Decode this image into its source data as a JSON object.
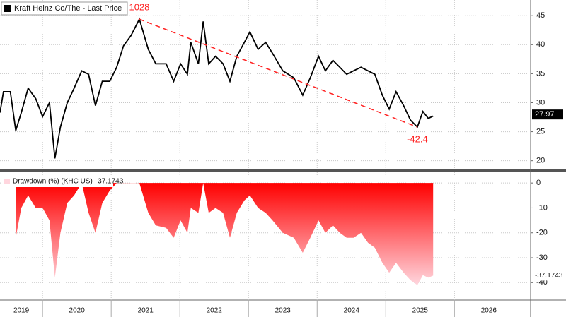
{
  "chart_data": [
    {
      "type": "line",
      "legend": "Kraft Heinz Co/The - Last Price",
      "x": [
        2019.38,
        2019.43,
        2019.53,
        2019.61,
        2019.69,
        2019.79,
        2019.9,
        2020.0,
        2020.1,
        2020.18,
        2020.26,
        2020.36,
        2020.46,
        2020.57,
        2020.67,
        2020.77,
        2020.87,
        2020.98,
        2021.08,
        2021.18,
        2021.29,
        2021.41,
        2021.54,
        2021.65,
        2021.8,
        2021.91,
        2022.01,
        2022.11,
        2022.16,
        2022.27,
        2022.34,
        2022.42,
        2022.52,
        2022.63,
        2022.73,
        2022.83,
        2022.94,
        2023.02,
        2023.14,
        2023.25,
        2023.35,
        2023.5,
        2023.66,
        2023.79,
        2023.9,
        2024.02,
        2024.12,
        2024.23,
        2024.33,
        2024.43,
        2024.53,
        2024.64,
        2024.74,
        2024.84,
        2024.95,
        2025.05,
        2025.15,
        2025.26,
        2025.36,
        2025.46,
        2025.54,
        2025.62,
        2025.69
      ],
      "series": [
        {
          "name": "Kraft Heinz Co/The - Last Price",
          "color": "#000000",
          "values": [
            28.3,
            31.9,
            31.9,
            25.2,
            28.3,
            32.5,
            30.7,
            27.6,
            30.0,
            20.4,
            25.8,
            30.0,
            32.5,
            35.5,
            34.9,
            29.5,
            33.7,
            33.7,
            36.1,
            39.8,
            41.6,
            44.4,
            39.2,
            36.7,
            36.7,
            33.7,
            36.7,
            34.9,
            40.4,
            36.7,
            44.0,
            36.7,
            38.0,
            36.7,
            33.7,
            38.0,
            40.4,
            42.2,
            39.2,
            40.4,
            38.5,
            35.5,
            34.3,
            31.3,
            34.3,
            38.0,
            35.5,
            37.3,
            36.1,
            34.9,
            35.5,
            36.1,
            35.5,
            34.9,
            31.3,
            28.9,
            31.9,
            29.5,
            27.0,
            25.8,
            28.5,
            27.3,
            27.7
          ],
          "last_value": 27.97
        }
      ],
      "annotations": [
        {
          "text": "1028",
          "color": "#ff2020"
        },
        {
          "text": "-42.4",
          "color": "#ff2020"
        }
      ],
      "xlim": [
        2019.38,
        2027.11
      ],
      "ylim": [
        18.5,
        47.7
      ],
      "yticks": [
        20,
        25,
        30,
        35,
        40,
        45
      ],
      "grid": true
    },
    {
      "type": "area",
      "x": [
        2019.38,
        2019.43,
        2019.53,
        2019.61,
        2019.69,
        2019.79,
        2019.9,
        2020.0,
        2020.1,
        2020.18,
        2020.26,
        2020.36,
        2020.46,
        2020.57,
        2020.67,
        2020.77,
        2020.87,
        2020.98,
        2021.08,
        2021.18,
        2021.29,
        2021.41,
        2021.54,
        2021.65,
        2021.8,
        2021.91,
        2022.01,
        2022.11,
        2022.16,
        2022.27,
        2022.34,
        2022.42,
        2022.52,
        2022.63,
        2022.73,
        2022.83,
        2022.94,
        2023.02,
        2023.14,
        2023.25,
        2023.35,
        2023.5,
        2023.66,
        2023.79,
        2023.9,
        2024.02,
        2024.12,
        2024.23,
        2024.33,
        2024.43,
        2024.53,
        2024.64,
        2024.74,
        2024.84,
        2024.95,
        2025.05,
        2025.15,
        2025.26,
        2025.36,
        2025.46,
        2025.54,
        2025.62,
        2025.69
      ],
      "series": [
        {
          "name": "Drawdown (%) (KHC US)",
          "color": "#ff0000",
          "values": [
            null,
            null,
            null,
            -22,
            -10,
            -5,
            -10,
            -10,
            -15,
            -38,
            -20,
            -8,
            -5,
            0,
            -12,
            -20,
            -8,
            -3,
            0,
            0,
            0,
            0,
            -12,
            -17,
            -18,
            -22,
            -15,
            -20,
            -10,
            -12,
            0,
            -12,
            -10,
            -12,
            -22,
            -12,
            -7,
            -5,
            -10,
            -12,
            -15,
            -20,
            -22,
            -28,
            -22,
            -15,
            -20,
            -17,
            -20,
            -22,
            -22,
            -20,
            -24,
            -26,
            -32,
            -36,
            -32,
            -36,
            -39,
            -41,
            -37,
            -38,
            -37.2
          ],
          "last_value": -37.1743
        }
      ],
      "xlim": [
        2019.38,
        2027.11
      ],
      "ylim": [
        -47,
        4.3
      ],
      "yticks": [
        0,
        -10,
        -20,
        -30,
        -40
      ],
      "xticks": [
        2019,
        2020,
        2021,
        2022,
        2023,
        2024,
        2025,
        2026
      ],
      "grid": true
    }
  ]
}
